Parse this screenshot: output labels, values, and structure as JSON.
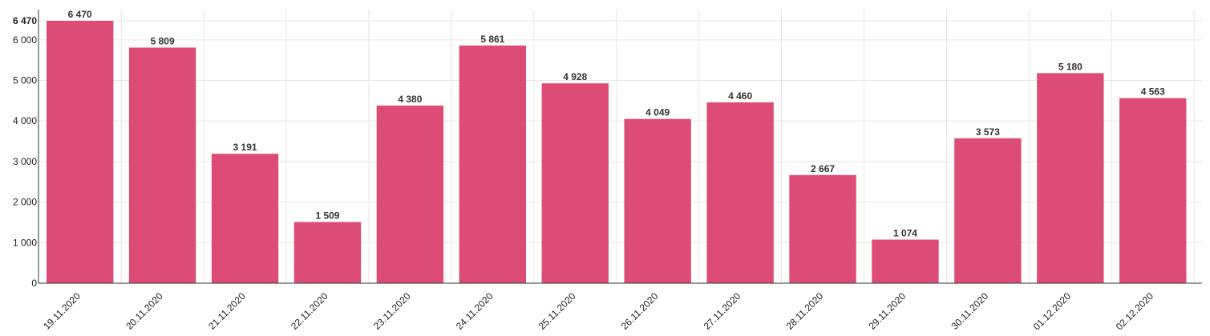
{
  "chart_data": {
    "type": "bar",
    "title": "",
    "xlabel": "",
    "ylabel": "",
    "categories": [
      "19.11.2020",
      "20.11.2020",
      "21.11.2020",
      "22.11.2020",
      "23.11.2020",
      "24.11.2020",
      "25.11.2020",
      "26.11.2020",
      "27.11.2020",
      "28.11.2020",
      "29.11.2020",
      "30.11.2020",
      "01.12.2020",
      "02.12.2020"
    ],
    "values": [
      6470,
      5809,
      3191,
      1509,
      4380,
      5861,
      4928,
      4049,
      4460,
      2667,
      1074,
      3573,
      5180,
      4563
    ],
    "value_labels": [
      "6 470",
      "5 809",
      "3 191",
      "1 509",
      "4 380",
      "5 861",
      "4 928",
      "4 049",
      "4 460",
      "2 667",
      "1 074",
      "3 573",
      "5 180",
      "4 563"
    ],
    "ylim": [
      0,
      6470
    ],
    "y_ticks": [
      {
        "value": 0,
        "label": "0"
      },
      {
        "value": 1000,
        "label": "1 000"
      },
      {
        "value": 2000,
        "label": "2 000"
      },
      {
        "value": 3000,
        "label": "3 000"
      },
      {
        "value": 4000,
        "label": "4 000"
      },
      {
        "value": 5000,
        "label": "5 000"
      },
      {
        "value": 6000,
        "label": "6 000"
      },
      {
        "value": 6470,
        "label": "6 470",
        "emphasis": true
      }
    ],
    "grid": true,
    "legend": "none",
    "bar_color": "#dc4c74"
  }
}
